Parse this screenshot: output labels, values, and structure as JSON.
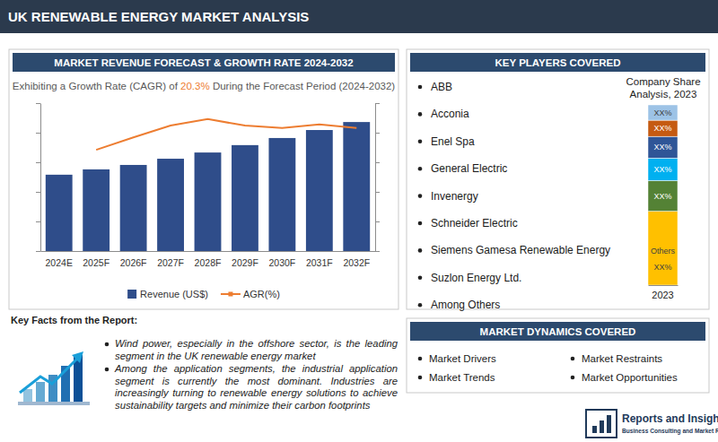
{
  "header": {
    "title": "UK RENEWABLE ENERGY MARKET ANALYSIS"
  },
  "chart_data": [
    {
      "type": "bar",
      "title": "MARKET REVENUE FORECAST & GROWTH RATE 2024-2032",
      "subtitle": [
        "Exhibiting a Growth Rate (CAGR) of ",
        "20.3%",
        " During the Forecast Period (2024-2032)"
      ],
      "categories": [
        "2024E",
        "2025F",
        "2026F",
        "2027F",
        "2028F",
        "2029F",
        "2030F",
        "2031F",
        "2032F"
      ],
      "series": [
        {
          "name": "Revenue (US$)",
          "type": "bar",
          "color": "#2f4d8a",
          "values": [
            25.8,
            27.6,
            29.1,
            31.2,
            33.3,
            35.8,
            38.2,
            40.9,
            43.6
          ]
        },
        {
          "name": "AGR(%)",
          "type": "line",
          "color": "#ed7d31",
          "axis": "y2",
          "values": [
            null,
            17.1,
            19.2,
            21.2,
            22.3,
            21.2,
            20.8,
            21.4,
            20.8
          ]
        }
      ],
      "ylim": [
        0,
        50
      ],
      "yticks": [
        0,
        10,
        20,
        30,
        40,
        50
      ],
      "y2lim": [
        0,
        25
      ],
      "y2ticks": [
        0,
        5,
        10,
        15,
        20,
        25
      ],
      "tick_labels": "x",
      "grid": false,
      "legend": "bottom"
    },
    {
      "type": "bar",
      "stacked": true,
      "title": "Company Share Analysis, 2023",
      "categories": [
        "2023"
      ],
      "series": [
        {
          "name": "Others",
          "color": "#ffc000",
          "values": [
            41
          ],
          "value_labels": [
            "XX%"
          ]
        },
        {
          "color": "#548235",
          "values": [
            17
          ],
          "value_labels": [
            "XX%"
          ]
        },
        {
          "color": "#00b0f0",
          "values": [
            12.5
          ],
          "value_labels": [
            "XX%"
          ]
        },
        {
          "color": "#2f5597",
          "values": [
            12
          ],
          "value_labels": [
            "XX%"
          ]
        },
        {
          "color": "#c55a11",
          "values": [
            9
          ],
          "value_labels": [
            "XX%"
          ]
        },
        {
          "color": "#9dc3e6",
          "values": [
            8.5
          ],
          "value_labels": [
            "XX%"
          ]
        }
      ],
      "ylim": [
        0,
        100
      ],
      "yticks": [],
      "tick_labels": "x",
      "data_labels": true
    }
  ],
  "key_players": {
    "title": "KEY PLAYERS COVERED",
    "items": [
      "ABB",
      "Acconia",
      "Enel Spa",
      "General Electric",
      "Invenergy",
      "Schneider Electric",
      "Siemens Gamesa Renewable Energy",
      "Suzlon Energy Ltd.",
      "Among Others"
    ]
  },
  "key_facts": {
    "title": "Key Facts from the Report:",
    "items": [
      "Wind power, especially in the offshore sector, is the leading segment in the UK renewable energy market",
      "Among the application segments, the industrial application segment is currently the most dominant. Industries are increasingly turning to renewable energy solutions to achieve sustainability targets and minimize their carbon footprints"
    ]
  },
  "market_dynamics": {
    "title": "MARKET DYNAMICS COVERED",
    "items": [
      "Market Drivers",
      "Market Restraints",
      "Market Trends",
      "Market Opportunities"
    ]
  },
  "logo": {
    "name": "Reports and Insights",
    "tagline": "Business Consulting and Market Research"
  }
}
